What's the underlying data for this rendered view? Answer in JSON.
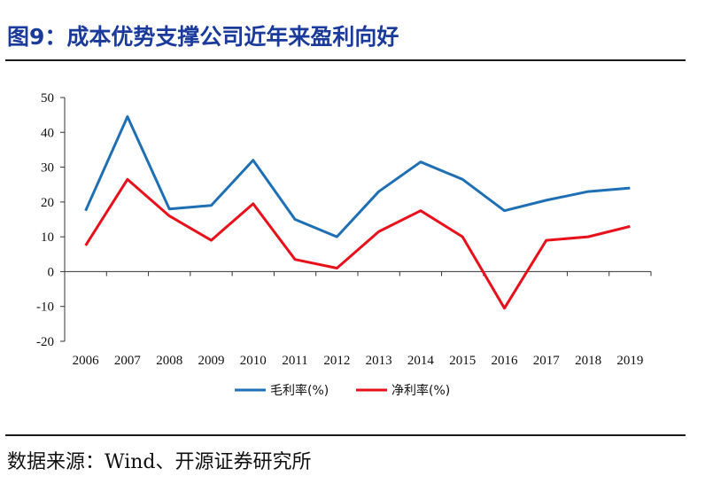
{
  "header": {
    "title": "图9：成本优势支撑公司近年来盈利向好"
  },
  "footer": {
    "source": "数据来源：Wind、开源证券研究所"
  },
  "chart_data": {
    "type": "line",
    "title": "",
    "xlabel": "",
    "ylabel": "",
    "categories": [
      "2006",
      "2007",
      "2008",
      "2009",
      "2010",
      "2011",
      "2012",
      "2013",
      "2014",
      "2015",
      "2016",
      "2017",
      "2018",
      "2019"
    ],
    "ylim": [
      -20,
      50
    ],
    "yticks": [
      -20,
      -10,
      0,
      10,
      20,
      30,
      40,
      50
    ],
    "grid": false,
    "legend_position": "bottom-center",
    "series": [
      {
        "name": "毛利率(%)",
        "color": "#1f6fb5",
        "values": [
          17.5,
          44.5,
          18.0,
          19.0,
          32.0,
          15.0,
          10.0,
          23.0,
          31.5,
          26.5,
          17.5,
          20.5,
          23.0,
          24.0
        ]
      },
      {
        "name": "净利率(%)",
        "color": "#e8101a",
        "values": [
          7.5,
          26.5,
          16.0,
          9.0,
          19.5,
          3.5,
          1.0,
          11.5,
          17.5,
          10.0,
          -10.5,
          9.0,
          10.0,
          13.0
        ]
      }
    ]
  }
}
